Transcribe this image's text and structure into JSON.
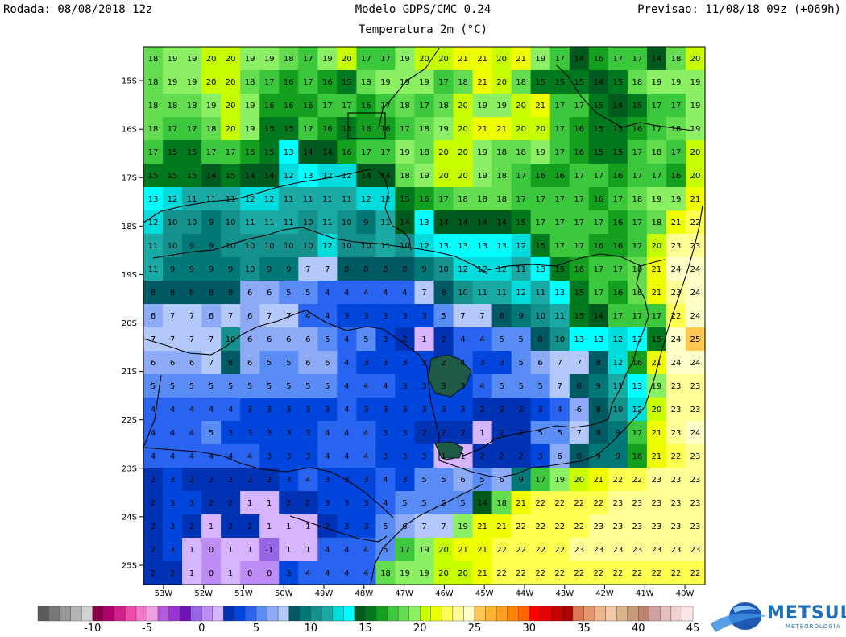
{
  "header": {
    "run": "Rodada: 08/08/2018 12z",
    "model": "Modelo GDPS/CMC 0.24",
    "variable": "Temperatura 2m (°C)",
    "forecast": "Previsao: 11/08/18 09z (+069h)"
  },
  "map": {
    "lat_labels": [
      "15S",
      "16S",
      "17S",
      "18S",
      "19S",
      "20S",
      "21S",
      "22S",
      "23S",
      "24S",
      "25S"
    ],
    "lon_labels": [
      "53W",
      "52W",
      "51W",
      "50W",
      "49W",
      "48W",
      "47W",
      "46W",
      "45W",
      "44W",
      "43W",
      "42W",
      "41W",
      "40W"
    ],
    "lon_range": [
      -53.5,
      -39.5
    ],
    "lat_range": [
      -25.4,
      -14.3
    ],
    "grid": [
      [
        18,
        19,
        19,
        20,
        20,
        19,
        19,
        18,
        17,
        19,
        20,
        17,
        17,
        19,
        20,
        20,
        21,
        21,
        20,
        21,
        19,
        17,
        14,
        16,
        17,
        17,
        14,
        18,
        20
      ],
      [
        18,
        19,
        19,
        20,
        20,
        18,
        17,
        16,
        17,
        16,
        15,
        18,
        19,
        19,
        19,
        17,
        18,
        21,
        20,
        18,
        15,
        15,
        15,
        14,
        15,
        18,
        19,
        19,
        19
      ],
      [
        18,
        18,
        18,
        19,
        20,
        19,
        16,
        16,
        16,
        17,
        17,
        16,
        17,
        18,
        17,
        18,
        20,
        19,
        19,
        20,
        21,
        17,
        17,
        15,
        14,
        15,
        17,
        17,
        19
      ],
      [
        18,
        17,
        17,
        18,
        20,
        19,
        15,
        15,
        17,
        16,
        15,
        16,
        16,
        17,
        18,
        19,
        20,
        21,
        21,
        20,
        20,
        17,
        16,
        15,
        15,
        16,
        17,
        18,
        19
      ],
      [
        17,
        15,
        15,
        17,
        17,
        16,
        15,
        13,
        14,
        14,
        16,
        17,
        17,
        19,
        18,
        20,
        20,
        19,
        18,
        18,
        19,
        17,
        16,
        15,
        15,
        17,
        18,
        17,
        20
      ],
      [
        15,
        15,
        15,
        14,
        15,
        14,
        14,
        12,
        13,
        12,
        12,
        14,
        14,
        18,
        19,
        20,
        20,
        19,
        18,
        17,
        16,
        16,
        17,
        17,
        16,
        17,
        17,
        16,
        20
      ],
      [
        13,
        12,
        11,
        11,
        11,
        12,
        12,
        11,
        11,
        11,
        11,
        12,
        12,
        15,
        16,
        17,
        18,
        18,
        18,
        17,
        17,
        17,
        17,
        16,
        17,
        18,
        19,
        19,
        21
      ],
      [
        12,
        10,
        10,
        9,
        10,
        11,
        11,
        11,
        10,
        11,
        10,
        9,
        11,
        14,
        13,
        14,
        14,
        14,
        14,
        15,
        17,
        17,
        17,
        17,
        16,
        17,
        18,
        21,
        22
      ],
      [
        11,
        10,
        9,
        9,
        10,
        10,
        10,
        10,
        10,
        12,
        10,
        10,
        11,
        10,
        12,
        13,
        13,
        13,
        13,
        12,
        15,
        17,
        17,
        16,
        16,
        17,
        20,
        23,
        23
      ],
      [
        11,
        9,
        9,
        9,
        9,
        10,
        9,
        9,
        7,
        7,
        8,
        8,
        8,
        8,
        9,
        10,
        12,
        12,
        12,
        11,
        13,
        15,
        16,
        17,
        17,
        18,
        21,
        24,
        24
      ],
      [
        8,
        8,
        8,
        8,
        8,
        6,
        6,
        5,
        5,
        4,
        4,
        4,
        4,
        4,
        7,
        8,
        10,
        11,
        11,
        12,
        11,
        13,
        15,
        17,
        16,
        18,
        21,
        23,
        24
      ],
      [
        6,
        7,
        7,
        6,
        7,
        6,
        7,
        7,
        4,
        4,
        3,
        3,
        3,
        3,
        3,
        5,
        7,
        7,
        8,
        9,
        10,
        11,
        15,
        14,
        17,
        17,
        17,
        22,
        24
      ],
      [
        7,
        7,
        7,
        7,
        10,
        6,
        6,
        6,
        6,
        5,
        4,
        5,
        3,
        2,
        1,
        2,
        4,
        4,
        5,
        5,
        8,
        10,
        13,
        13,
        12,
        13,
        15,
        24,
        25
      ],
      [
        6,
        6,
        6,
        7,
        8,
        6,
        5,
        5,
        6,
        6,
        4,
        3,
        3,
        3,
        3,
        2,
        4,
        3,
        3,
        5,
        6,
        7,
        7,
        8,
        12,
        16,
        21,
        24,
        24
      ],
      [
        5,
        5,
        5,
        5,
        5,
        5,
        5,
        5,
        5,
        5,
        4,
        4,
        4,
        3,
        3,
        3,
        3,
        4,
        5,
        5,
        5,
        7,
        8,
        9,
        11,
        13,
        19,
        23,
        23
      ],
      [
        4,
        4,
        4,
        4,
        4,
        3,
        3,
        3,
        3,
        3,
        4,
        3,
        3,
        3,
        3,
        3,
        3,
        2,
        2,
        2,
        3,
        4,
        6,
        8,
        10,
        12,
        20,
        23,
        23
      ],
      [
        4,
        4,
        4,
        5,
        3,
        3,
        3,
        3,
        3,
        4,
        4,
        4,
        3,
        3,
        2,
        2,
        2,
        1,
        2,
        2,
        5,
        5,
        7,
        8,
        9,
        17,
        21,
        23,
        24
      ],
      [
        4,
        4,
        4,
        4,
        4,
        4,
        3,
        3,
        3,
        4,
        4,
        4,
        3,
        3,
        3,
        1,
        1,
        2,
        2,
        2,
        3,
        6,
        8,
        9,
        9,
        16,
        21,
        22,
        23
      ],
      [
        2,
        3,
        2,
        2,
        2,
        2,
        2,
        3,
        4,
        3,
        3,
        3,
        4,
        3,
        5,
        5,
        6,
        5,
        6,
        9,
        17,
        19,
        20,
        21,
        22,
        22,
        23,
        23,
        23
      ],
      [
        2,
        3,
        3,
        2,
        2,
        1,
        1,
        2,
        2,
        3,
        3,
        3,
        4,
        5,
        5,
        5,
        5,
        14,
        18,
        21,
        22,
        22,
        22,
        22,
        23,
        23,
        23,
        23,
        23
      ],
      [
        2,
        3,
        2,
        1,
        2,
        2,
        1,
        1,
        1,
        2,
        3,
        3,
        5,
        6,
        7,
        7,
        19,
        21,
        21,
        22,
        22,
        22,
        22,
        23,
        23,
        23,
        23,
        23,
        23
      ],
      [
        2,
        3,
        1,
        0,
        1,
        1,
        -1,
        1,
        1,
        4,
        4,
        4,
        5,
        17,
        19,
        20,
        21,
        21,
        22,
        22,
        22,
        22,
        23,
        23,
        23,
        23,
        23,
        23,
        23
      ],
      [
        2,
        2,
        1,
        0,
        1,
        0,
        0,
        3,
        4,
        4,
        4,
        4,
        18,
        19,
        19,
        20,
        20,
        21,
        22,
        22,
        22,
        22,
        22,
        22,
        22,
        22,
        22,
        22,
        22
      ]
    ]
  },
  "colorbar": {
    "min": -15,
    "max": 45,
    "labels": [
      "-10",
      "-5",
      "0",
      "5",
      "10",
      "15",
      "20",
      "25",
      "30",
      "35",
      "40",
      "45"
    ],
    "colors": [
      "#5a5a5a",
      "#787878",
      "#969696",
      "#b4b4b4",
      "#d2d2d2",
      "#8c0046",
      "#b4006e",
      "#d21e8c",
      "#f04baa",
      "#f078c8",
      "#f0a0e1",
      "#b45adc",
      "#9b32d2",
      "#6e14b4",
      "#9666e6",
      "#be8cf5",
      "#d7b4ff",
      "#0032b4",
      "#0046dc",
      "#2864f0",
      "#5a8cf5",
      "#8caaf5",
      "#b4c8fa",
      "#005a64",
      "#007878",
      "#14918c",
      "#19aaa5",
      "#00dcdc",
      "#00ffff",
      "#005a1e",
      "#00781e",
      "#14a01e",
      "#3cc83c",
      "#64dc50",
      "#8cf064",
      "#c8ff00",
      "#f0ff00",
      "#ffff50",
      "#ffff96",
      "#ffffc8",
      "#ffc850",
      "#ffb432",
      "#ffa01e",
      "#ff8200",
      "#ff6400",
      "#ff0000",
      "#e60000",
      "#c80000",
      "#aa0000",
      "#dc7850",
      "#e6966e",
      "#f0b48c",
      "#f5c8aa",
      "#dcb48c",
      "#c89b78",
      "#be826e",
      "#d2a0a0",
      "#e6bebe",
      "#f0d2d2",
      "#fae6e6"
    ]
  },
  "logo": {
    "text": "METSUL",
    "subtext": "METEOROLOGIA"
  }
}
